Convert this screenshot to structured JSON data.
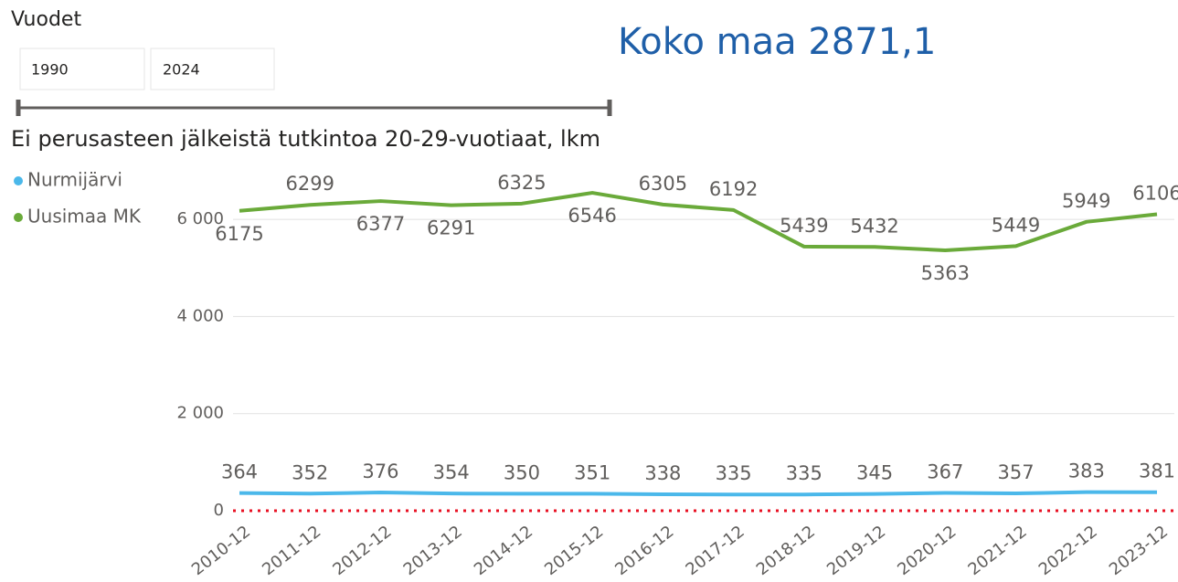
{
  "slicer": {
    "title": "Vuodet",
    "start": "1990",
    "end": "2024"
  },
  "card": {
    "text": "Koko maa 2871,1"
  },
  "chart_data": {
    "type": "line",
    "title": "Ei perusasteen jälkeistä tutkintoa 20-29-vuotiaat, lkm",
    "categories": [
      "2010-12",
      "2011-12",
      "2012-12",
      "2013-12",
      "2014-12",
      "2015-12",
      "2016-12",
      "2017-12",
      "2018-12",
      "2019-12",
      "2020-12",
      "2021-12",
      "2022-12",
      "2023-12"
    ],
    "series": [
      {
        "name": "Nurmijärvi",
        "color": "#4bb8ea",
        "values": [
          364,
          352,
          376,
          354,
          350,
          351,
          338,
          335,
          335,
          345,
          367,
          357,
          383,
          381
        ]
      },
      {
        "name": "Uusimaa MK",
        "color": "#6aaa3a",
        "values": [
          6175,
          6299,
          6377,
          6291,
          6325,
          6546,
          6305,
          6192,
          5439,
          5432,
          5363,
          5449,
          5949,
          6106
        ]
      }
    ],
    "ylim": [
      0,
      7000
    ],
    "yticks": [
      {
        "value": 0,
        "label": "0"
      },
      {
        "value": 2000,
        "label": "2 000"
      },
      {
        "value": 4000,
        "label": "4 000"
      },
      {
        "value": 6000,
        "label": "6 000"
      }
    ],
    "grid": true,
    "reference_line": {
      "value": 0,
      "color": "#e81123"
    },
    "legend": "top-left"
  }
}
